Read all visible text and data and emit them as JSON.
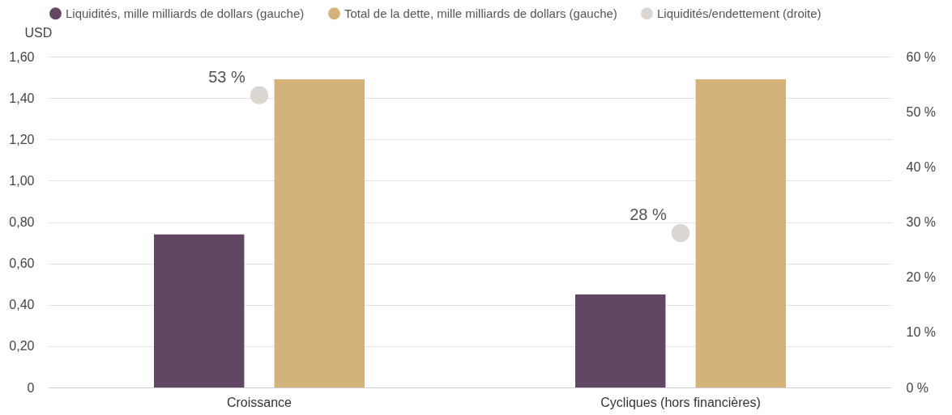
{
  "chart_data": {
    "type": "bar",
    "categories": [
      "Croissance",
      "Cycliques (hors financières)"
    ],
    "ylabel": "USD",
    "series": [
      {
        "name": "Liquidités, mille milliards de dollars (gauche)",
        "color": "#614763",
        "values": [
          0.74,
          0.45
        ]
      },
      {
        "name": "Total de la dette, mille milliards de dollars (gauche)",
        "color": "#d3b37b",
        "values": [
          1.49,
          1.49
        ]
      },
      {
        "name": "Liquidités/endettement (droite)",
        "color": "#dcd6d2",
        "type": "scatter",
        "axis": "y2",
        "values": [
          53,
          28
        ],
        "value_labels": [
          "53 %",
          "28 %"
        ]
      }
    ],
    "ylim": [
      0,
      1.6
    ],
    "yticks": [
      {
        "value": 0,
        "label": "0"
      },
      {
        "value": 0.2,
        "label": "0,20"
      },
      {
        "value": 0.4,
        "label": "0,40"
      },
      {
        "value": 0.6,
        "label": "0,60"
      },
      {
        "value": 0.8,
        "label": "0,80"
      },
      {
        "value": 1.0,
        "label": "1,00"
      },
      {
        "value": 1.2,
        "label": "1,20"
      },
      {
        "value": 1.4,
        "label": "1,40"
      },
      {
        "value": 1.6,
        "label": "1,60"
      }
    ],
    "y2lim": [
      0,
      60
    ],
    "y2ticks": [
      {
        "value": 0,
        "label": "0 %"
      },
      {
        "value": 10,
        "label": "10 %"
      },
      {
        "value": 20,
        "label": "20 %"
      },
      {
        "value": 30,
        "label": "30 %"
      },
      {
        "value": 40,
        "label": "40 %"
      },
      {
        "value": 50,
        "label": "50 %"
      },
      {
        "value": 60,
        "label": "60 %"
      }
    ],
    "grid": "y",
    "legend": "top",
    "marker": "circle"
  }
}
